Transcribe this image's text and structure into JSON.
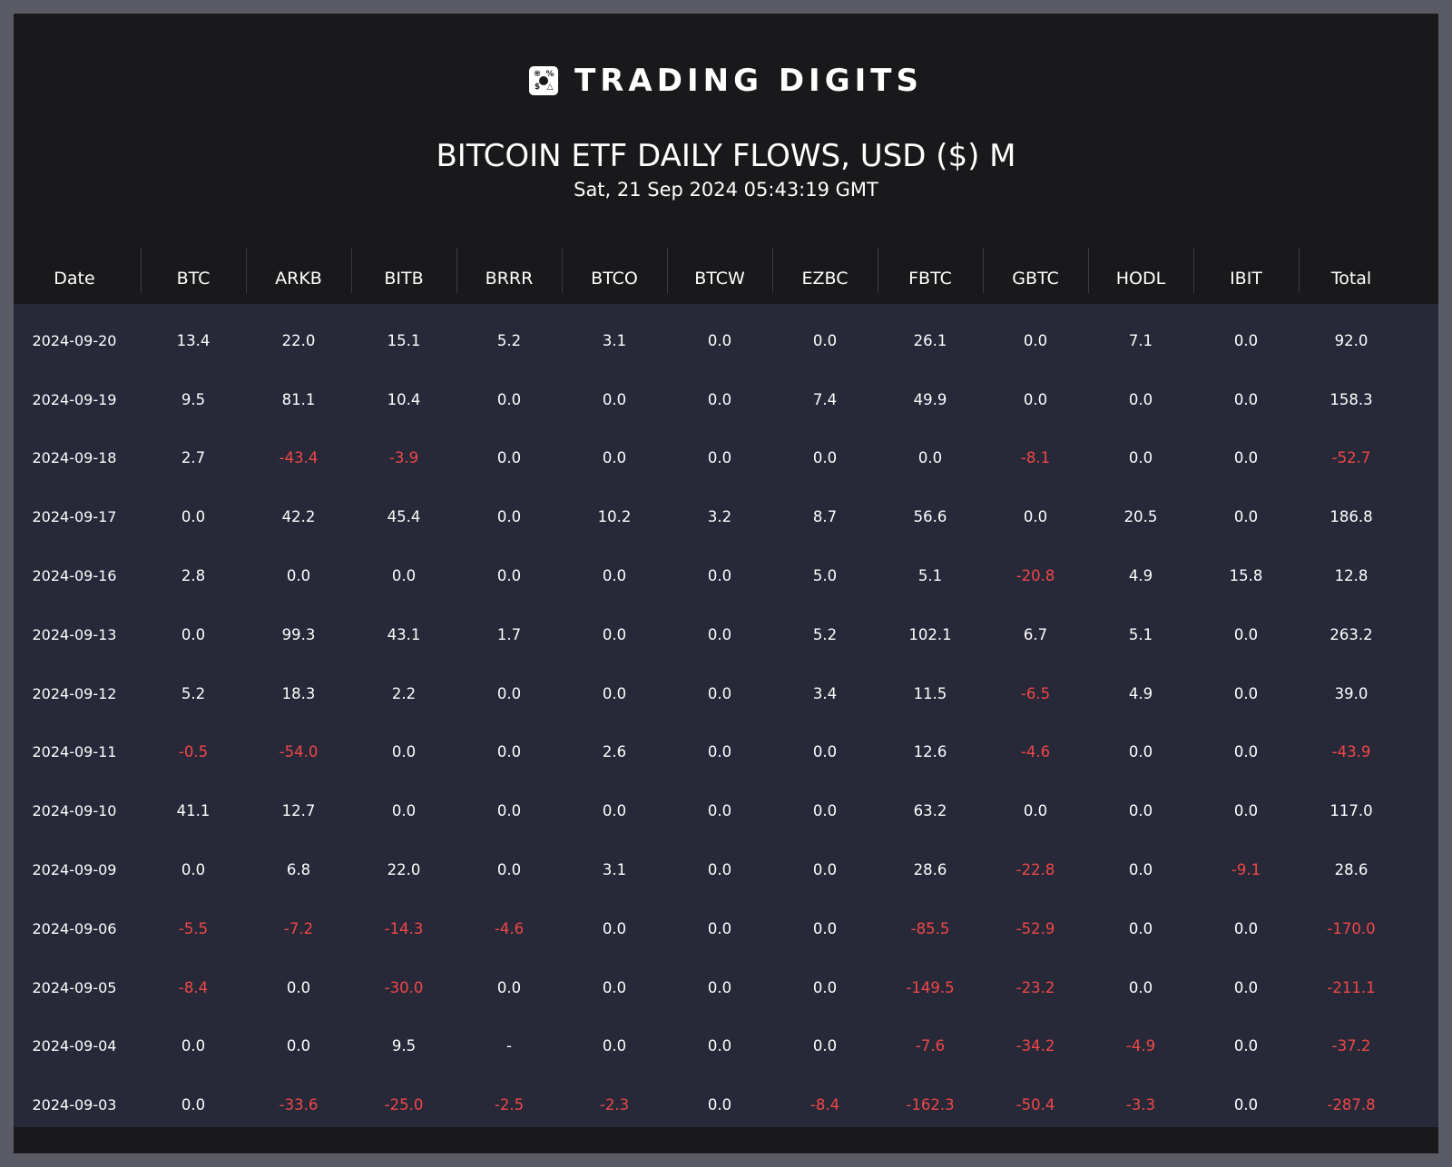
{
  "brand": {
    "logo_glyphs": [
      "⁜",
      "%",
      "$",
      "△"
    ],
    "name": "TRADING DIGITS"
  },
  "title": "BITCOIN ETF DAILY FLOWS, USD ($) M",
  "subtitle": "Sat, 21 Sep 2024 05:43:19 GMT",
  "colors": {
    "negative": "#f04848",
    "body_bg": "#272838",
    "header_bg": "#19191c"
  },
  "table": {
    "columns": [
      "Date",
      "BTC",
      "ARKB",
      "BITB",
      "BRRR",
      "BTCO",
      "BTCW",
      "EZBC",
      "FBTC",
      "GBTC",
      "HODL",
      "IBIT",
      "Total"
    ],
    "rows": [
      [
        "2024-09-20",
        "13.4",
        "22.0",
        "15.1",
        "5.2",
        "3.1",
        "0.0",
        "0.0",
        "26.1",
        "0.0",
        "7.1",
        "0.0",
        "92.0"
      ],
      [
        "2024-09-19",
        "9.5",
        "81.1",
        "10.4",
        "0.0",
        "0.0",
        "0.0",
        "7.4",
        "49.9",
        "0.0",
        "0.0",
        "0.0",
        "158.3"
      ],
      [
        "2024-09-18",
        "2.7",
        "-43.4",
        "-3.9",
        "0.0",
        "0.0",
        "0.0",
        "0.0",
        "0.0",
        "-8.1",
        "0.0",
        "0.0",
        "-52.7"
      ],
      [
        "2024-09-17",
        "0.0",
        "42.2",
        "45.4",
        "0.0",
        "10.2",
        "3.2",
        "8.7",
        "56.6",
        "0.0",
        "20.5",
        "0.0",
        "186.8"
      ],
      [
        "2024-09-16",
        "2.8",
        "0.0",
        "0.0",
        "0.0",
        "0.0",
        "0.0",
        "5.0",
        "5.1",
        "-20.8",
        "4.9",
        "15.8",
        "12.8"
      ],
      [
        "2024-09-13",
        "0.0",
        "99.3",
        "43.1",
        "1.7",
        "0.0",
        "0.0",
        "5.2",
        "102.1",
        "6.7",
        "5.1",
        "0.0",
        "263.2"
      ],
      [
        "2024-09-12",
        "5.2",
        "18.3",
        "2.2",
        "0.0",
        "0.0",
        "0.0",
        "3.4",
        "11.5",
        "-6.5",
        "4.9",
        "0.0",
        "39.0"
      ],
      [
        "2024-09-11",
        "-0.5",
        "-54.0",
        "0.0",
        "0.0",
        "2.6",
        "0.0",
        "0.0",
        "12.6",
        "-4.6",
        "0.0",
        "0.0",
        "-43.9"
      ],
      [
        "2024-09-10",
        "41.1",
        "12.7",
        "0.0",
        "0.0",
        "0.0",
        "0.0",
        "0.0",
        "63.2",
        "0.0",
        "0.0",
        "0.0",
        "117.0"
      ],
      [
        "2024-09-09",
        "0.0",
        "6.8",
        "22.0",
        "0.0",
        "3.1",
        "0.0",
        "0.0",
        "28.6",
        "-22.8",
        "0.0",
        "-9.1",
        "28.6"
      ],
      [
        "2024-09-06",
        "-5.5",
        "-7.2",
        "-14.3",
        "-4.6",
        "0.0",
        "0.0",
        "0.0",
        "-85.5",
        "-52.9",
        "0.0",
        "0.0",
        "-170.0"
      ],
      [
        "2024-09-05",
        "-8.4",
        "0.0",
        "-30.0",
        "0.0",
        "0.0",
        "0.0",
        "0.0",
        "-149.5",
        "-23.2",
        "0.0",
        "0.0",
        "-211.1"
      ],
      [
        "2024-09-04",
        "0.0",
        "0.0",
        "9.5",
        "-",
        "0.0",
        "0.0",
        "0.0",
        "-7.6",
        "-34.2",
        "-4.9",
        "0.0",
        "-37.2"
      ],
      [
        "2024-09-03",
        "0.0",
        "-33.6",
        "-25.0",
        "-2.5",
        "-2.3",
        "0.0",
        "-8.4",
        "-162.3",
        "-50.4",
        "-3.3",
        "0.0",
        "-287.8"
      ]
    ]
  }
}
